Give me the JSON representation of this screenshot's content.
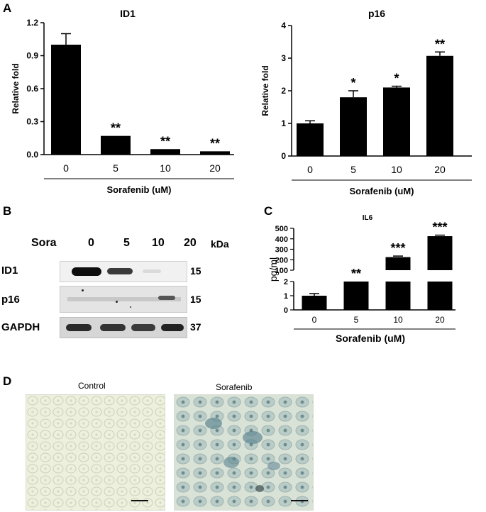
{
  "panels": {
    "A": "A",
    "B": "B",
    "C": "C",
    "D": "D"
  },
  "chart_data": [
    {
      "type": "bar",
      "title": "ID1",
      "ylabel": "Relative fold",
      "xlabel": "Sorafenib (uM)",
      "categories": [
        "0",
        "5",
        "10",
        "20"
      ],
      "values": [
        1.0,
        0.17,
        0.05,
        0.03
      ],
      "errors": [
        0.1,
        0,
        0,
        0
      ],
      "significance": [
        "",
        "**",
        "**",
        "**"
      ],
      "ylim": [
        0,
        1.2
      ],
      "yticks": [
        "0.0",
        "0.3",
        "0.6",
        "0.9",
        "1.2"
      ],
      "grid": false,
      "legend": "none"
    },
    {
      "type": "bar",
      "title": "p16",
      "ylabel": "Relative fold",
      "xlabel": "Sorafenib (uM)",
      "categories": [
        "0",
        "5",
        "10",
        "20"
      ],
      "values": [
        1.0,
        1.8,
        2.1,
        3.07
      ],
      "errors": [
        0.08,
        0.2,
        0.04,
        0.12
      ],
      "significance": [
        "",
        "*",
        "*",
        "**"
      ],
      "ylim": [
        0,
        4
      ],
      "yticks": [
        "0",
        "1",
        "2",
        "3",
        "4"
      ],
      "grid": false,
      "legend": "none"
    },
    {
      "type": "bar",
      "title": "IL6",
      "ylabel": "pg/ml",
      "xlabel": "Sorafenib (uM)",
      "categories": [
        "0",
        "5",
        "10",
        "20"
      ],
      "values": [
        1.0,
        2.0,
        225,
        425
      ],
      "errors": [
        0.15,
        0,
        10,
        10
      ],
      "significance": [
        "",
        "**",
        "***",
        "***"
      ],
      "ylim": [
        0,
        500
      ],
      "axis_break": [
        2,
        100
      ],
      "yticks_lower": [
        "0",
        "1",
        "2"
      ],
      "yticks_upper": [
        "100",
        "200",
        "300",
        "400",
        "500"
      ],
      "grid": false,
      "legend": "none"
    }
  ],
  "western": {
    "header_label": "Sora",
    "lanes": [
      "0",
      "5",
      "10",
      "20"
    ],
    "unit": "kDa",
    "rows": [
      {
        "label": "ID1",
        "kda": "15"
      },
      {
        "label": "p16",
        "kda": "15"
      },
      {
        "label": "GAPDH",
        "kda": "37"
      }
    ]
  },
  "micrographs": [
    {
      "title": "Control"
    },
    {
      "title": "Sorafenib"
    }
  ]
}
